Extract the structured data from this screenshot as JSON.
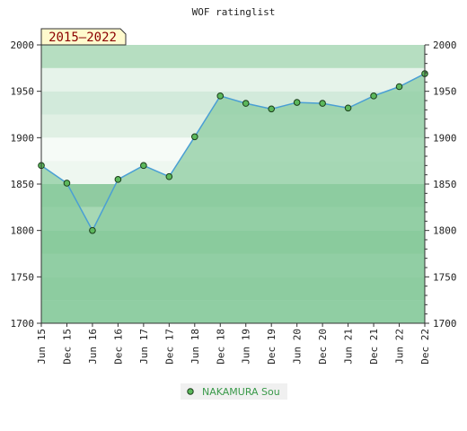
{
  "chart_data": {
    "type": "area",
    "title": "WOF ratinglist",
    "badge": "2015–2022",
    "xlabel": "",
    "ylabel": "",
    "categories": [
      "Jun 15",
      "Dec 15",
      "Jun 16",
      "Dec 16",
      "Jun 17",
      "Dec 17",
      "Jun 18",
      "Dec 18",
      "Jun 19",
      "Dec 19",
      "Jun 20",
      "Dec 20",
      "Jun 21",
      "Dec 21",
      "Jun 22",
      "Dec 22"
    ],
    "series": [
      {
        "name": "NAKAMURA Sou",
        "values": [
          1870,
          1851,
          1800,
          1855,
          1870,
          1858,
          1901,
          1945,
          1937,
          1931,
          1938,
          1937,
          1932,
          1945,
          1955,
          1969
        ]
      }
    ],
    "ylim": [
      1700,
      2000
    ],
    "yticks": [
      "1700",
      "1750",
      "1800",
      "1850",
      "1900",
      "1950",
      "2000"
    ],
    "legend": "bottom-center",
    "grid": false,
    "colors": {
      "line": "#4a9fd4",
      "marker_fill": "#5cb85c",
      "marker_stroke": "#1a3d1a",
      "fill": "#8ccca0",
      "badge_bg": "#fffacd",
      "badge_text": "#8b0000",
      "legend_text": "#3a9a4a"
    }
  }
}
